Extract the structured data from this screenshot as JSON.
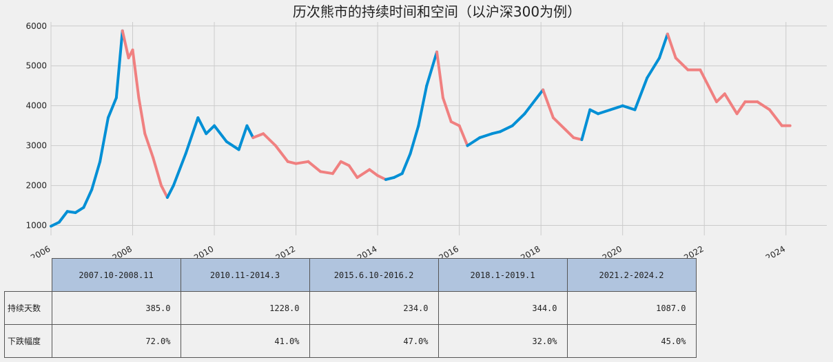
{
  "chart_data": {
    "type": "line",
    "title": "历次熊市的持续时间和空间（以沪深300为例）",
    "xlabel": "",
    "ylabel": "",
    "xlim": [
      2006.0,
      2025.0
    ],
    "ylim": [
      750,
      6100
    ],
    "x_ticks": [
      "2006",
      "2008",
      "2010",
      "2012",
      "2014",
      "2016",
      "2018",
      "2020",
      "2022",
      "2024"
    ],
    "y_ticks": [
      "1000",
      "2000",
      "3000",
      "4000",
      "5000",
      "6000"
    ],
    "grid": true,
    "colors": {
      "bull": "#008fd5",
      "bear": "#f08080"
    },
    "series": [
      {
        "x": [
          2006.0,
          2006.2,
          2006.4,
          2006.6,
          2006.8,
          2007.0,
          2007.2,
          2007.4,
          2007.6,
          2007.75,
          2007.9,
          2008.0,
          2008.15,
          2008.3,
          2008.5,
          2008.7,
          2008.85,
          2009.0,
          2009.3,
          2009.6,
          2009.8,
          2010.0,
          2010.3,
          2010.6,
          2010.8,
          2010.95,
          2011.2,
          2011.5,
          2011.8,
          2012.0,
          2012.3,
          2012.6,
          2012.9,
          2013.1,
          2013.3,
          2013.5,
          2013.8,
          2014.0,
          2014.2,
          2014.4,
          2014.6,
          2014.8,
          2015.0,
          2015.2,
          2015.45,
          2015.6,
          2015.8,
          2016.0,
          2016.2,
          2016.5,
          2016.8,
          2017.0,
          2017.3,
          2017.6,
          2017.9,
          2018.05,
          2018.3,
          2018.6,
          2018.8,
          2019.0,
          2019.2,
          2019.4,
          2019.7,
          2020.0,
          2020.3,
          2020.6,
          2020.9,
          2021.1,
          2021.3,
          2021.6,
          2021.9,
          2022.0,
          2022.3,
          2022.5,
          2022.8,
          2023.0,
          2023.3,
          2023.6,
          2023.9,
          2024.1
        ],
        "y": [
          980,
          1080,
          1350,
          1320,
          1450,
          1900,
          2600,
          3700,
          4200,
          5880,
          5200,
          5400,
          4200,
          3300,
          2700,
          2000,
          1700,
          2000,
          2800,
          3700,
          3300,
          3500,
          3100,
          2900,
          3500,
          3200,
          3300,
          3000,
          2600,
          2550,
          2600,
          2350,
          2300,
          2600,
          2500,
          2200,
          2400,
          2250,
          2150,
          2200,
          2300,
          2800,
          3500,
          4500,
          5350,
          4200,
          3600,
          3500,
          3000,
          3200,
          3300,
          3350,
          3500,
          3800,
          4200,
          4400,
          3700,
          3400,
          3200,
          3150,
          3900,
          3800,
          3900,
          4000,
          3900,
          4700,
          5200,
          5800,
          5200,
          4900,
          4900,
          4700,
          4100,
          4300,
          3800,
          4100,
          4100,
          3900,
          3500,
          3500
        ]
      }
    ],
    "bear_periods": [
      {
        "label": "2007.10-2008.11",
        "start": 2007.8,
        "end": 2008.9
      },
      {
        "label": "2010.11-2014.3",
        "start": 2010.9,
        "end": 2014.25
      },
      {
        "label": "2015.6.10-2016.2",
        "start": 2015.45,
        "end": 2016.15
      },
      {
        "label": "2018.1-2019.1",
        "start": 2018.05,
        "end": 2019.05
      },
      {
        "label": "2021.2-2024.2",
        "start": 2021.1,
        "end": 2024.15
      }
    ]
  },
  "table": {
    "columns": [
      "2007.10-2008.11",
      "2010.11-2014.3",
      "2015.6.10-2016.2",
      "2018.1-2019.1",
      "2021.2-2024.2"
    ],
    "rows": [
      {
        "label": "持续天数",
        "values": [
          "385.0",
          "1228.0",
          "234.0",
          "344.0",
          "1087.0"
        ]
      },
      {
        "label": "下跌幅度",
        "values": [
          "72.0%",
          "41.0%",
          "47.0%",
          "32.0%",
          "45.0%"
        ]
      }
    ]
  }
}
